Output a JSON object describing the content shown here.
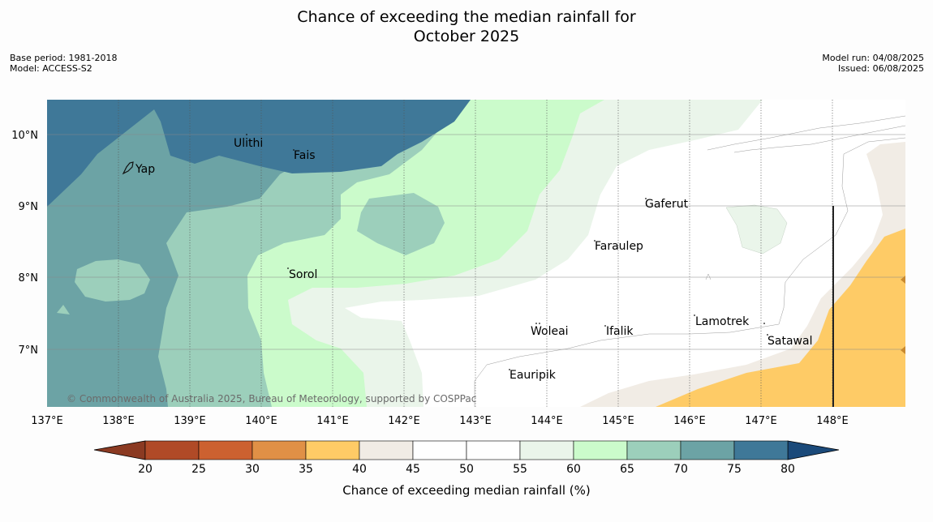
{
  "title": {
    "line1": "Chance of exceeding the median rainfall for",
    "line2": "October 2025"
  },
  "meta_left": {
    "base_period": "Base period: 1981-2018",
    "model": "Model: ACCESS-S2"
  },
  "meta_right": {
    "model_run": "Model run: 04/08/2025",
    "issued": "Issued: 06/08/2025"
  },
  "map": {
    "lon_ticks": [
      "137°E",
      "138°E",
      "139°E",
      "140°E",
      "141°E",
      "142°E",
      "143°E",
      "144°E",
      "145°E",
      "146°E",
      "147°E",
      "148°E"
    ],
    "lat_ticks": [
      "10°N",
      "9°N",
      "8°N",
      "7°N"
    ],
    "places": [
      "Ulithi",
      "Fais",
      "Yap",
      "Gaferut",
      "Faraulep",
      "Sorol",
      "Lamotrek",
      "Woleai",
      "Ifalik",
      "Satawal",
      "Eauripik"
    ],
    "copyright": "© Commonwealth of Australia 2025, Bureau of Meteorology, supported by COSPPac"
  },
  "colorbar": {
    "ticks": [
      "20",
      "25",
      "30",
      "35",
      "40",
      "45",
      "50",
      "55",
      "60",
      "65",
      "70",
      "75",
      "80"
    ],
    "label": "Chance of exceeding median rainfall (%)",
    "colors": [
      "#b04a27",
      "#cc6130",
      "#e09046",
      "#fecb66",
      "#f1ece5",
      "#ffffff",
      "#ffffff",
      "#eaf5ea",
      "#cbfbcb",
      "#9ccfbb",
      "#6ca3a5",
      "#3f7898"
    ],
    "under_color": "#8b3a22",
    "over_color": "#1b4a7a"
  }
}
